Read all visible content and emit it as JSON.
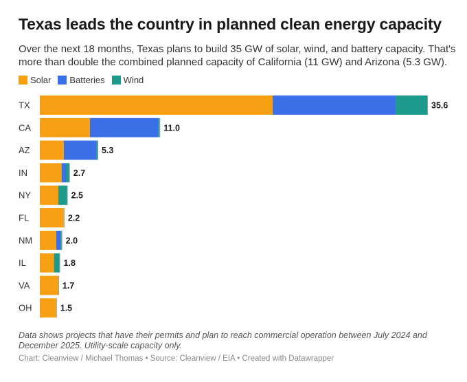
{
  "title": "Texas leads the country in planned clean energy capacity",
  "subtitle": "Over the next 18 months, Texas plans to build 35 GW of solar, wind, and battery capacity. That's more than double the combined planned capacity of California (11 GW) and Arizona (5.3 GW).",
  "note": "Data shows projects that have their permits and plan to reach commercial operation between July 2024 and December 2025. Utility-scale capacity only.",
  "credit": "Chart: Cleanview / Michael Thomas • Source: Cleanview / EIA • Created with Datawrapper",
  "colors": {
    "Solar": "#f7a014",
    "Batteries": "#3a6fe8",
    "Wind": "#1e9a8c"
  },
  "chart_data": {
    "type": "bar",
    "orientation": "horizontal",
    "stacked": true,
    "title": "Texas leads the country in planned clean energy capacity",
    "xlabel": "",
    "ylabel": "",
    "xlim": [
      0,
      35.6
    ],
    "legend": [
      "Solar",
      "Batteries",
      "Wind"
    ],
    "legend_position": "top-left",
    "categories": [
      "TX",
      "CA",
      "AZ",
      "IN",
      "NY",
      "FL",
      "NM",
      "IL",
      "VA",
      "OH"
    ],
    "series": [
      {
        "name": "Solar",
        "values": [
          21.4,
          4.6,
          2.2,
          2.0,
          1.7,
          2.2,
          1.5,
          1.3,
          1.7,
          1.5
        ]
      },
      {
        "name": "Batteries",
        "values": [
          11.3,
          6.3,
          3.0,
          0.4,
          0.0,
          0.0,
          0.4,
          0.0,
          0.0,
          0.0
        ]
      },
      {
        "name": "Wind",
        "values": [
          2.9,
          0.1,
          0.1,
          0.3,
          0.8,
          0.0,
          0.1,
          0.5,
          0.0,
          0.0
        ]
      }
    ],
    "totals": [
      "35.6",
      "11.0",
      "5.3",
      "2.7",
      "2.5",
      "2.2",
      "2.0",
      "1.8",
      "1.7",
      "1.5"
    ]
  }
}
